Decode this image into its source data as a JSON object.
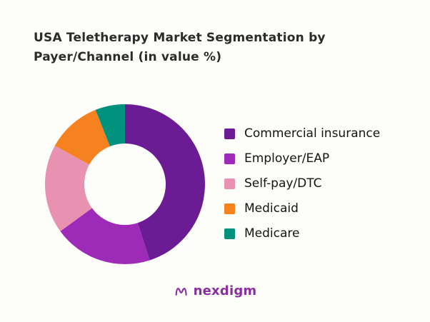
{
  "title": {
    "line1": "USA Teletherapy Market Segmentation by",
    "line2": "Payer/Channel (in value %)"
  },
  "chart_data": {
    "type": "pie",
    "donut": true,
    "title": "USA Teletherapy Market Segmentation by Payer/Channel (in value %)",
    "labels": [
      "Commercial insurance",
      "Employer/EAP",
      "Self-pay/DTC",
      "Medicaid",
      "Medicare"
    ],
    "values": [
      45,
      20,
      18,
      11,
      6
    ],
    "colors": [
      "#6b1b93",
      "#9d2bb8",
      "#e891b0",
      "#f5821f",
      "#00917c"
    ],
    "start_angle": "top",
    "direction": "clockwise",
    "legend_position": "right"
  },
  "logo": {
    "text": "nexdigm",
    "color": "#8a2e9d"
  }
}
